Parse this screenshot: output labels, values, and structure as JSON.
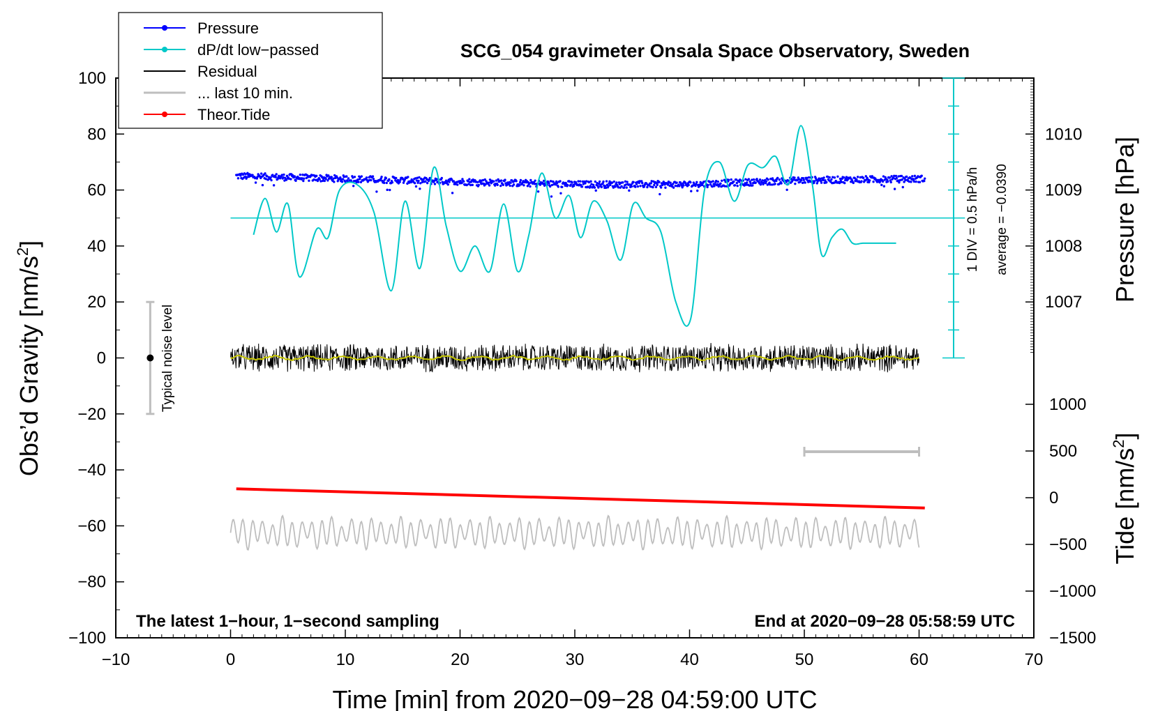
{
  "chart_data": {
    "type": "line",
    "title": "SCG_054 gravimeter Onsala Space Observatory, Sweden",
    "xlabel": "Time [min] from 2020−09−28 04:59:00 UTC",
    "ylabel_left": "Obs’d Gravity [nm/s",
    "ylabel_left_sup": "2",
    "ylabel_left_end": "]",
    "ylabel_right_pressure": "Pressure [hPa]",
    "ylabel_right_tide": "Tide [nm/s",
    "ylabel_right_tide_sup": "2",
    "ylabel_right_tide_end": "]",
    "xlim": [
      -10,
      70
    ],
    "ylim": [
      -100,
      100
    ],
    "x_ticks": [
      "−10",
      "0",
      "10",
      "20",
      "30",
      "40",
      "50",
      "60",
      "70"
    ],
    "y_ticks": [
      "100",
      "80",
      "60",
      "40",
      "20",
      "0",
      "−20",
      "−40",
      "−60",
      "−80",
      "−100"
    ],
    "pressure_ticks": [
      "1010",
      "1009",
      "1008",
      "1007"
    ],
    "pressure_tick_values": [
      1010,
      1009,
      1008,
      1007
    ],
    "pressure_axis": {
      "value_at_y_60": 1009,
      "hpa_per_20_gravity": 1
    },
    "tide_ticks": [
      "1000",
      "500",
      "0",
      "−500",
      "−1000",
      "−1500"
    ],
    "tide_tick_values": [
      1000,
      500,
      0,
      -500,
      -1000,
      -1500
    ],
    "tide_ylim": [
      -1500,
      1000
    ],
    "footer_left": "The latest 1−hour, 1−second sampling",
    "footer_right": "End at 2020−09−28 05:58:59 UTC",
    "noise_label": "Typical noise level",
    "noise_bar": {
      "x": -7,
      "center": 0,
      "half_range": 20
    },
    "div_label": "1 DIV = 0.5 hPa/h",
    "average_label": "average = −0.0390",
    "dpdt_baseline_y": 50,
    "last10_bar": {
      "x_start": 50,
      "x_end": 60,
      "y": -33.5
    },
    "legend": [
      {
        "label": "Pressure",
        "color": "#0000ff",
        "marker": true
      },
      {
        "label": "dP/dt low−passed",
        "color": "#00c8c8",
        "marker": true
      },
      {
        "label": "Residual",
        "color": "#000000",
        "marker": false
      },
      {
        "label": "... last 10 min.",
        "color": "#bebebe",
        "marker": false
      },
      {
        "label": "Theor.Tide",
        "color": "#ff0000",
        "marker": true
      }
    ],
    "series": [
      {
        "name": "Pressure",
        "color": "#0000ff",
        "style": "dots",
        "x_range": [
          0.5,
          60.5
        ],
        "mean_y": 63,
        "noise": 1.2,
        "shape_x": [
          0.5,
          10,
          20,
          30,
          40,
          50,
          60.5
        ],
        "shape_y": [
          65,
          64,
          63,
          62,
          62,
          63.5,
          64
        ]
      },
      {
        "name": "dP/dt low−passed",
        "color": "#00c8c8",
        "style": "line",
        "x": [
          2,
          3,
          4,
          5,
          6,
          7.5,
          8.5,
          9.5,
          11,
          12.5,
          14,
          15.2,
          16.5,
          17.7,
          18.8,
          20,
          21.3,
          22.6,
          23.8,
          25,
          26,
          27.1,
          28.3,
          29.5,
          30.5,
          31.6,
          32.8,
          34,
          35.1,
          36.2,
          37.5,
          38.8,
          40.1,
          41.3,
          42.6,
          43.9,
          45.1,
          46.4,
          47.5,
          48.6,
          49.7,
          50.7,
          51.5,
          52.4,
          53.3,
          54.2,
          55.1,
          56.2,
          57.3,
          58
        ],
        "y": [
          44,
          57,
          45,
          55,
          29,
          46,
          43,
          60,
          62,
          52,
          24,
          56,
          32,
          68,
          47,
          31,
          40,
          31,
          55,
          31,
          44,
          66,
          50,
          58,
          43,
          56,
          49,
          35,
          55,
          50,
          45,
          20,
          14,
          60,
          70,
          56,
          69,
          68,
          72,
          62,
          83,
          62,
          37,
          43,
          46,
          41,
          41,
          41,
          41,
          41
        ]
      },
      {
        "name": "Residual",
        "color": "#000000",
        "style": "noise",
        "x_range": [
          0,
          60
        ],
        "center": 0,
        "amplitude": 5.5
      },
      {
        "name": "Residual smoothed",
        "color": "#c8c800",
        "style": "smooth",
        "x_range": [
          0,
          60
        ],
        "center": 0,
        "amplitude": 0.6
      },
      {
        "name": "... last 10 min.",
        "color": "#bebebe",
        "style": "oscillation",
        "x_range": [
          0,
          60
        ],
        "center": -62.5,
        "amplitude": 5
      },
      {
        "name": "Theor.Tide",
        "color": "#ff0000",
        "style": "line",
        "tide_units": true,
        "x": [
          0.5,
          60.5
        ],
        "y": [
          95,
          -110
        ]
      }
    ]
  }
}
